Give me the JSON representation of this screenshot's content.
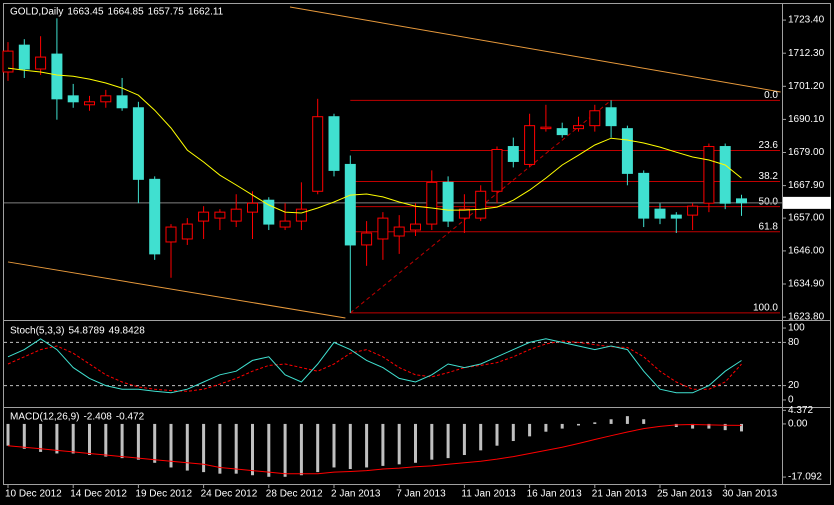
{
  "chart_data": [
    {
      "type": "candlestick",
      "title": "GOLD,Daily",
      "categories": [
        "10 Dec 2012",
        null,
        null,
        null,
        "14 Dec 2012",
        null,
        null,
        null,
        "19 Dec 2012",
        null,
        null,
        null,
        "24 Dec 2012",
        null,
        null,
        null,
        "28 Dec 2012",
        null,
        null,
        null,
        "2 Jan 2013",
        null,
        null,
        null,
        "7 Jan 2013",
        null,
        null,
        null,
        "11 Jan 2013",
        null,
        null,
        null,
        "16 Jan 2013",
        null,
        null,
        null,
        "21 Jan 2013",
        null,
        null,
        null,
        "25 Jan 2013",
        null,
        null,
        null,
        "30 Jan 2013",
        null
      ],
      "open": [
        1706,
        1715,
        1707,
        1712,
        1698,
        1695,
        1696,
        1698,
        1694,
        1670,
        1649,
        1650,
        1656,
        1657,
        1656,
        1659,
        1663,
        1654,
        1656,
        1666,
        1691,
        1675,
        1648,
        1650,
        1651,
        1653,
        1655,
        1669,
        1657,
        1657,
        1666,
        1681,
        1675,
        1687,
        1687,
        1687,
        1688,
        1694,
        1687,
        1672,
        1660,
        1658,
        1658,
        1662,
        1681,
        1663.45
      ],
      "high": [
        1716,
        1717,
        1718,
        1724,
        1702,
        1698,
        1700,
        1704,
        1696,
        1671,
        1655,
        1657,
        1661,
        1660,
        1665,
        1666,
        1664,
        1662,
        1669,
        1697,
        1692,
        1678,
        1656,
        1659,
        1658,
        1662,
        1673,
        1671,
        1665,
        1668,
        1681,
        1684,
        1692,
        1695,
        1689,
        1691,
        1695,
        1696.5,
        1688,
        1673,
        1662,
        1659,
        1662,
        1682,
        1682,
        1664.85
      ],
      "low": [
        1703,
        1704,
        1705,
        1690,
        1694,
        1693,
        1694,
        1693,
        1662,
        1643,
        1637,
        1648,
        1650,
        1653,
        1654,
        1650,
        1653,
        1653,
        1653,
        1665,
        1671,
        1625.2,
        1641,
        1643,
        1645,
        1651,
        1653,
        1654,
        1652,
        1656,
        1662,
        1674,
        1674,
        1686,
        1684,
        1686,
        1686,
        1684,
        1668,
        1654,
        1655,
        1652,
        1653,
        1659,
        1660,
        1657.75
      ],
      "close": [
        1713,
        1707,
        1711,
        1697,
        1696,
        1696,
        1698,
        1694,
        1670,
        1645,
        1654,
        1655,
        1659,
        1659,
        1660,
        1662,
        1655,
        1656,
        1660,
        1691,
        1673,
        1648,
        1652,
        1657,
        1654,
        1655,
        1669,
        1656,
        1660,
        1666,
        1680,
        1676,
        1688,
        1687.5,
        1685,
        1688,
        1693,
        1688,
        1672,
        1657,
        1657,
        1657,
        1661,
        1681,
        1662,
        1662.11
      ],
      "up_color": "#ff0000",
      "down_color": "#40e0d0",
      "moving_average": {
        "color": "#ffff00",
        "values": [
          1707.3,
          1706.6,
          1706.0,
          1705.0,
          1704.6,
          1703.6,
          1702.3,
          1700.6,
          1698.2,
          1693.2,
          1687.2,
          1679.8,
          1675.8,
          1671.4,
          1668.1,
          1664.7,
          1661.4,
          1659.0,
          1658.7,
          1660.4,
          1662.4,
          1664.7,
          1665.1,
          1664.1,
          1662.4,
          1661.0,
          1660.4,
          1659.7,
          1659.7,
          1660.0,
          1660.7,
          1663.0,
          1666.4,
          1670.4,
          1674.8,
          1678.1,
          1681.5,
          1683.8,
          1683.2,
          1682.2,
          1680.8,
          1679.1,
          1677.5,
          1676.5,
          1674.8,
          1670.4
        ]
      },
      "fibonacci": {
        "color": "#c00000",
        "levels": [
          {
            "value": 0,
            "label": "0.0"
          },
          23.6,
          38.2,
          {
            "value": 50,
            "label": "50.0"
          },
          61.8,
          {
            "value": 100,
            "label": "100.0"
          }
        ]
      },
      "trendlines": [
        {
          "color": "#e89a3c",
          "points": [
            [
              17.3,
              1727.8
            ],
            [
              47.4,
              1699.3
            ]
          ]
        },
        {
          "color": "#e89a3c",
          "points": [
            [
              0,
              1642.3
            ],
            [
              20.7,
              1623.5
            ]
          ]
        }
      ],
      "ylim": [
        1623.5,
        1728.8
      ],
      "yticks": [
        {
          "value": 1723.4,
          "label": "1723.40"
        },
        {
          "value": 1712.3,
          "label": "1712.30"
        },
        {
          "value": 1701.2,
          "label": "1701.20"
        },
        {
          "value": 1690.1,
          "label": "1690.10"
        },
        {
          "value": 1679,
          "label": "1679.00"
        },
        {
          "value": 1667.9,
          "label": "1667.90"
        },
        {
          "value": 1657,
          "label": "1657.00"
        },
        {
          "value": 1646,
          "label": "1646.00"
        },
        {
          "value": 1634.9,
          "label": "1634.90"
        },
        {
          "value": 1623.8,
          "label": "1623.80"
        }
      ]
    },
    {
      "type": "stochastic",
      "title": "Stoch(5,3,3)",
      "main": {
        "color": "#40e0d0",
        "values": [
          60,
          70,
          85,
          70,
          45,
          30,
          20,
          15,
          15,
          12,
          10,
          15,
          25,
          35,
          40,
          55,
          60,
          35,
          25,
          50,
          80,
          70,
          55,
          45,
          30,
          25,
          35,
          50,
          45,
          50,
          60,
          70,
          80,
          85,
          80,
          75,
          70,
          75,
          70,
          40,
          15,
          10,
          10,
          20,
          40,
          54.8789
        ]
      },
      "signal": {
        "color": "#ff0000",
        "values": [
          50,
          60,
          70,
          75,
          65,
          50,
          35,
          25,
          18,
          15,
          13,
          12,
          15,
          22,
          30,
          40,
          48,
          50,
          45,
          40,
          50,
          65,
          70,
          60,
          45,
          35,
          32,
          38,
          45,
          48,
          52,
          60,
          70,
          78,
          82,
          80,
          77,
          74,
          73,
          60,
          40,
          25,
          15,
          15,
          25,
          49.8428
        ]
      },
      "ylim": [
        -7,
        107
      ],
      "yticks": [
        100,
        80,
        20,
        0
      ]
    },
    {
      "type": "macd",
      "title": "MACD(12,26,9)",
      "histogram": {
        "color": "#c0c0c0",
        "values": [
          -7,
          -8,
          -9,
          -9.5,
          -9.5,
          -10,
          -10.5,
          -11,
          -11.5,
          -12.5,
          -14,
          -15,
          -15.5,
          -16,
          -16,
          -16.5,
          -17,
          -17,
          -16.5,
          -15.5,
          -14,
          -14.5,
          -14,
          -13.5,
          -13,
          -12.5,
          -11.5,
          -11,
          -10,
          -8.5,
          -7,
          -5.5,
          -4,
          -2.5,
          -1.5,
          -0.5,
          0.5,
          1.5,
          2.5,
          1.5,
          0,
          -1,
          -1.5,
          -1.5,
          -2,
          -2.408
        ]
      },
      "signal": {
        "color": "#ff0000",
        "values": [
          -7,
          -7.5,
          -8,
          -8.5,
          -9,
          -9.5,
          -10,
          -10.5,
          -11,
          -11.5,
          -12,
          -12.5,
          -13,
          -14,
          -14.5,
          -15,
          -15.5,
          -16,
          -16,
          -16,
          -15.5,
          -15.3,
          -15,
          -14.5,
          -14.2,
          -13.8,
          -13.5,
          -13,
          -12.5,
          -12,
          -11.3,
          -10.5,
          -9.5,
          -8.5,
          -7.5,
          -6.3,
          -5,
          -3.8,
          -2.6,
          -1.5,
          -0.8,
          -0.3,
          -0.2,
          -0.3,
          -0.4,
          -0.472
        ]
      },
      "ylim": [
        -19,
        4.8
      ],
      "yticks": [
        4.372,
        {
          "value": 0,
          "label": "0.00"
        },
        -17.092
      ]
    }
  ]
}
